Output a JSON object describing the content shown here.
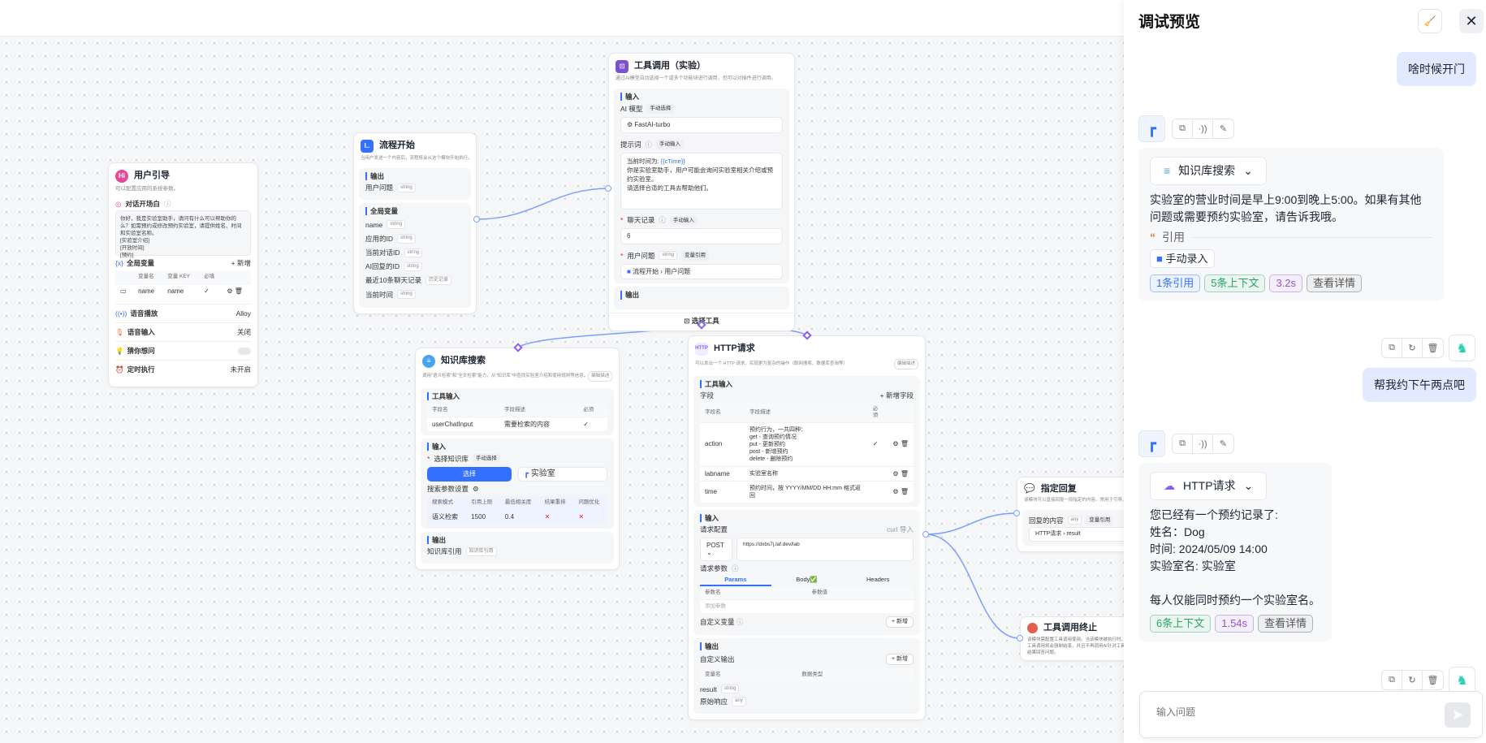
{
  "canvas": {
    "guide": {
      "title": "用户引导",
      "desc": "可以配置应用的系统参数。",
      "opening_label": "对话开场白",
      "opening_text": [
        "你好，我是实验室助手，请问有什么可以帮助你的么？如需预约或修改预约实验室，请提供姓名、时间和实验室名称。",
        "[实验室介绍]",
        "[开放时间]",
        "[预约]"
      ],
      "vars_label": "全局变量",
      "add_label": "+ 新增",
      "var_headers": [
        "变量名",
        "变量 KEY",
        "必填"
      ],
      "var_row": {
        "name": "name",
        "key": "name",
        "required": "✓"
      },
      "settings": [
        {
          "label": "语音播放",
          "value": "Alloy"
        },
        {
          "label": "语音输入",
          "value": "关闭"
        },
        {
          "label": "猜你想问",
          "value": ""
        },
        {
          "label": "定时执行",
          "value": "未开启"
        }
      ],
      "suggest_toggle": false
    },
    "start": {
      "title": "流程开始",
      "desc": "当用户发送一个内容后，流程将会从这个模块开始执行。",
      "output_label": "输出",
      "output_item": {
        "name": "用户问题",
        "type": "string"
      },
      "globals_label": "全局变量",
      "globals": [
        {
          "name": "name",
          "type": "string"
        },
        {
          "name": "应用的ID",
          "type": "string"
        },
        {
          "name": "当前对话ID",
          "type": "string"
        },
        {
          "name": "AI回复的ID",
          "type": "string"
        },
        {
          "name": "最近10条聊天记录",
          "type": "历史记录"
        },
        {
          "name": "当前时间",
          "type": "string"
        }
      ]
    },
    "tool": {
      "title": "工具调用（实验）",
      "desc": "通过AI模型自动选择一个或多个功能块进行调用，也可以对插件进行调用。",
      "input_label": "输入",
      "model_label": "AI 模型",
      "model_mode": "手动选择",
      "model": "FastAI-turbo",
      "prompt_label": "提示词",
      "prompt_mode": "手动输入",
      "prompt_var": "{{cTime}}",
      "prompt_prefix": "当前时间为: ",
      "prompt_lines": [
        "你是实验室助手，用户可能会询问实验室相关介绍或预约实验室。",
        "请选择合适的工具去帮助他们。"
      ],
      "history_label": "聊天记录",
      "history_mode": "手动输入",
      "history_value": "6",
      "question_label": "用户问题",
      "question_type": "string",
      "question_mode": "变量引用",
      "question_ref_node": "流程开始",
      "question_ref_field": "用户问题",
      "output_label": "输出",
      "select_tool": "选择工具"
    },
    "kb": {
      "title": "知识库搜索",
      "desc": "调用\"语义检索\"和\"全文检索\"能力，从\"知识库\"中查找实验室介绍和使用规则等信息。",
      "edit_desc": "编辑描述",
      "tool_input_label": "工具输入",
      "headers": [
        "字段名",
        "字段描述",
        "必须"
      ],
      "row": {
        "name": "userChatInput",
        "desc": "需要检索的内容",
        "required": "✓"
      },
      "input_label": "输入",
      "select_kb_label": "选择知识库",
      "select_mode": "手动选择",
      "select_btn": "选择",
      "kb_name": "实验室",
      "search_params_label": "搜索参数设置",
      "param_headers": [
        "搜索模式",
        "引用上限",
        "最低相关度",
        "结果重排",
        "问题优化"
      ],
      "param_row": [
        "语义检索",
        "1500",
        "0.4",
        "✕",
        "✕"
      ],
      "output_label": "输出",
      "output_item": "知识库引用",
      "output_type": "知识库引用"
    },
    "http": {
      "title": "HTTP请求",
      "desc": "可以发出一个 HTTP 请求，实现更为复杂的操作（联网搜索、数据库查询等）",
      "edit_desc": "编辑描述",
      "tool_input_label": "工具输入",
      "fields_label": "字段",
      "add_field": "+ 新增字段",
      "headers": [
        "字段名",
        "字段描述",
        "必须"
      ],
      "rows": [
        {
          "name": "action",
          "desc": [
            "预约行为，一共四种：",
            "get - 查询预约情况",
            "put - 更新预约",
            "post - 新增预约",
            "delete - 删除预约"
          ],
          "required": "✓"
        },
        {
          "name": "labname",
          "desc": [
            "实验室名称"
          ],
          "required": ""
        },
        {
          "name": "time",
          "desc": [
            "预约时间，按 YYYY/MM/DD HH:mm 格式返回"
          ],
          "required": ""
        }
      ],
      "input_label": "输入",
      "req_config": "请求配置",
      "curl_import": "curl 导入",
      "method": "POST",
      "url": "https://dxbs7j.laf.dev/lab",
      "req_params": "请求参数",
      "tabs": [
        "Params",
        "Body✅",
        "Headers"
      ],
      "param_headers": [
        "参数名",
        "参数值"
      ],
      "add_param": "添加参数",
      "custom_vars": "自定义变量",
      "add": "+ 新增",
      "output_label": "输出",
      "custom_output": "自定义输出",
      "out_headers": [
        "变量名",
        "数据类型"
      ],
      "outputs": [
        {
          "name": "result",
          "type": "string"
        },
        {
          "name": "原始响应",
          "type": "any"
        }
      ]
    },
    "reply": {
      "title": "指定回复",
      "desc": "该模块可以直接回复一段指定的内容。常用于引导、",
      "content_label": "回复的内容",
      "type": "any",
      "mode": "变量引用",
      "ref_node": "HTTP请求",
      "ref_field": "result"
    },
    "stop": {
      "title": "工具调用终止",
      "desc": [
        "该模块需配置工具调用使用。当该模块被执行时，",
        "工具调用将会强制结束，并且不再调用AI针对工具",
        "结果回答问题。"
      ]
    }
  },
  "panel": {
    "title": "调试预览",
    "messages": [
      {
        "role": "user",
        "text": "啥时候开门"
      },
      {
        "role": "ai",
        "module": "知识库搜索",
        "text": [
          "实验室的营业时间是早上9:00到晚上5:00。如果有其他问题或需要预约实验室，请告诉我哦。"
        ],
        "quote_label": "引用",
        "quote_source": "手动录入",
        "tags": [
          {
            "text": "1条引用",
            "color": "#3370ff"
          },
          {
            "text": "5条上下文",
            "color": "#22a861"
          },
          {
            "text": "3.2s",
            "color": "#9b4fd1"
          },
          {
            "text": "查看详情",
            "color": "#555555"
          }
        ]
      },
      {
        "role": "user",
        "text": "帮我约下午两点吧"
      },
      {
        "role": "ai",
        "module": "HTTP请求",
        "text": [
          "您已经有一个预约记录了:",
          "姓名：Dog",
          "时间: 2024/05/09 14:00",
          "实验室名: 实验室",
          "",
          "每人仅能同时预约一个实验室名。"
        ],
        "tags": [
          {
            "text": "6条上下文",
            "color": "#22a861"
          },
          {
            "text": "1.54s",
            "color": "#9b4fd1"
          },
          {
            "text": "查看详情",
            "color": "#555555"
          }
        ]
      }
    ],
    "input_placeholder": "输入问题"
  },
  "colors": {
    "accent": "#3370ff",
    "edge": "#7aa0ff",
    "user_bubble": "#e1eaff",
    "tool_handle": "#8a5cf6"
  }
}
